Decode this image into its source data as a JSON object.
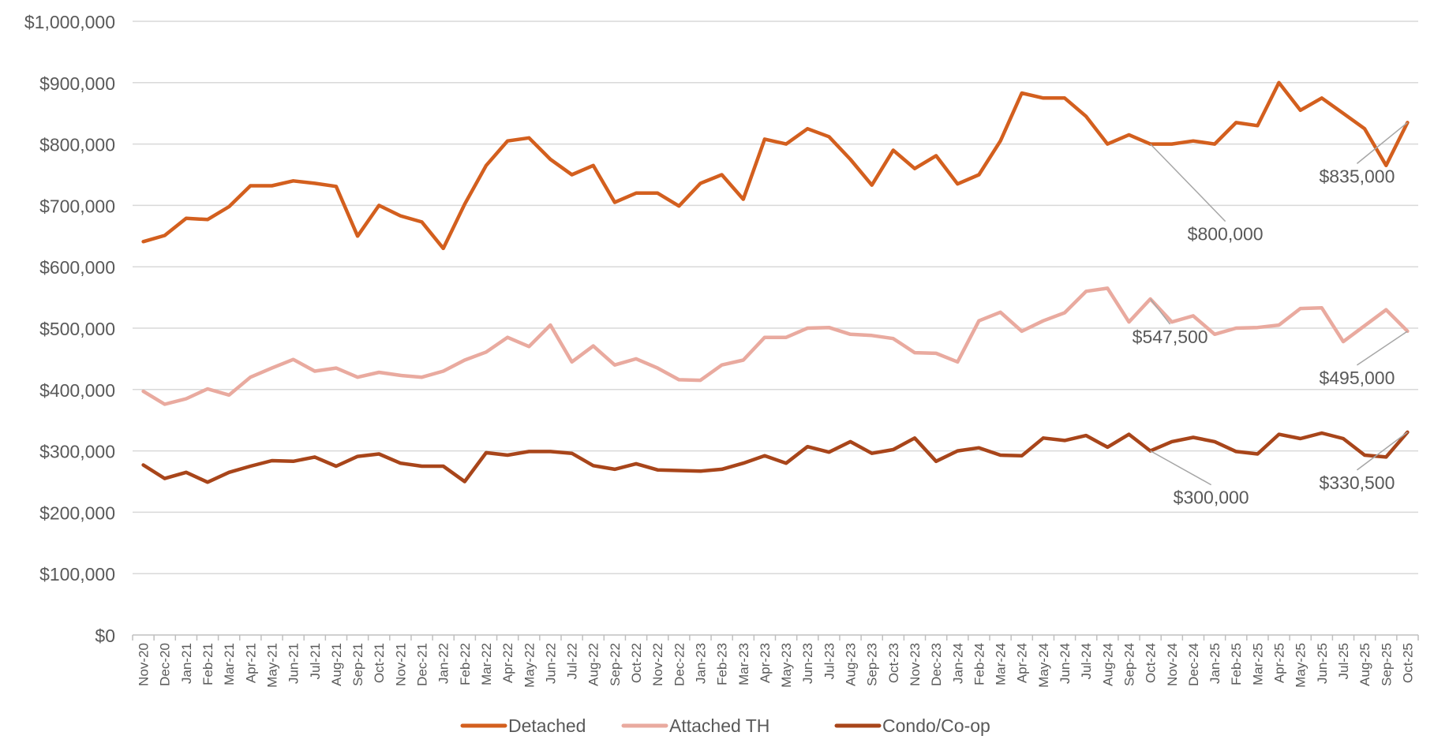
{
  "chart_data": {
    "type": "line",
    "title": "",
    "xlabel": "",
    "ylabel": "",
    "ylim": [
      0,
      1000000
    ],
    "yticks": [
      "$0",
      "$100,000",
      "$200,000",
      "$300,000",
      "$400,000",
      "$500,000",
      "$600,000",
      "$700,000",
      "$800,000",
      "$900,000",
      "$1,000,000"
    ],
    "ytick_values": [
      0,
      100000,
      200000,
      300000,
      400000,
      500000,
      600000,
      700000,
      800000,
      900000,
      1000000
    ],
    "grid": true,
    "legend_position": "bottom-center",
    "categories": [
      "Nov-20",
      "Dec-20",
      "Jan-21",
      "Feb-21",
      "Mar-21",
      "Apr-21",
      "May-21",
      "Jun-21",
      "Jul-21",
      "Aug-21",
      "Sep-21",
      "Oct-21",
      "Nov-21",
      "Dec-21",
      "Jan-22",
      "Feb-22",
      "Mar-22",
      "Apr-22",
      "May-22",
      "Jun-22",
      "Jul-22",
      "Aug-22",
      "Sep-22",
      "Oct-22",
      "Nov-22",
      "Dec-22",
      "Jan-23",
      "Feb-23",
      "Mar-23",
      "Apr-23",
      "May-23",
      "Jun-23",
      "Jul-23",
      "Aug-23",
      "Sep-23",
      "Oct-23",
      "Nov-23",
      "Dec-23",
      "Jan-24",
      "Feb-24",
      "Mar-24",
      "Apr-24",
      "May-24",
      "Jun-24",
      "Jul-24",
      "Aug-24",
      "Sep-24",
      "Oct-24",
      "Nov-24",
      "Dec-24",
      "Jan-25",
      "Feb-25",
      "Mar-25",
      "Apr-25",
      "May-25",
      "Jun-25",
      "Jul-25",
      "Aug-25",
      "Sep-25",
      "Oct-25"
    ],
    "series": [
      {
        "name": "Detached",
        "color": "#d35f1e",
        "values": [
          641000,
          651000,
          679000,
          677000,
          698000,
          732000,
          732000,
          740000,
          736000,
          731000,
          650000,
          700000,
          683000,
          673000,
          630000,
          702000,
          765000,
          805000,
          810000,
          775000,
          750000,
          765000,
          705000,
          720000,
          720000,
          699000,
          736000,
          750000,
          710000,
          808000,
          800000,
          825000,
          812000,
          775000,
          733000,
          790000,
          760000,
          781000,
          735000,
          750000,
          805000,
          883000,
          875000,
          875000,
          845000,
          800000,
          815000,
          800000,
          800000,
          805000,
          800000,
          835000,
          830000,
          900000,
          855000,
          875000,
          850000,
          825000,
          765000,
          835000
        ]
      },
      {
        "name": "Attached TH",
        "color": "#e9aa9f",
        "values": [
          397000,
          376000,
          385000,
          401000,
          391000,
          420000,
          435000,
          449000,
          430000,
          435000,
          420000,
          428000,
          423000,
          420000,
          430000,
          448000,
          461000,
          485000,
          470000,
          505000,
          445000,
          471000,
          440000,
          450000,
          435000,
          416000,
          415000,
          440000,
          448000,
          485000,
          485000,
          500000,
          501000,
          490000,
          488000,
          483000,
          460000,
          459000,
          445000,
          512000,
          526000,
          495000,
          512000,
          525000,
          560000,
          565000,
          510000,
          547500,
          510000,
          520000,
          490000,
          500000,
          501000,
          505000,
          532000,
          533000,
          478000,
          504000,
          530000,
          495000
        ]
      },
      {
        "name": "Condo/Co-op",
        "color": "#a8451a",
        "values": [
          277000,
          255000,
          265000,
          249000,
          265000,
          275000,
          284000,
          283000,
          290000,
          275000,
          291000,
          295000,
          280000,
          275000,
          275000,
          250000,
          297000,
          293000,
          299000,
          299000,
          296000,
          276000,
          270000,
          279000,
          269000,
          268000,
          267000,
          270000,
          280000,
          292000,
          280000,
          307000,
          298000,
          315000,
          296000,
          302000,
          321000,
          283000,
          300000,
          305000,
          293000,
          292000,
          321000,
          317000,
          325000,
          306000,
          327000,
          300000,
          315000,
          322000,
          315000,
          299000,
          295000,
          327000,
          320000,
          329000,
          320000,
          293000,
          290000,
          330500
        ]
      }
    ],
    "annotations": [
      {
        "series": "Detached",
        "category": "Oct-24",
        "value": 800000,
        "label": "$800,000"
      },
      {
        "series": "Detached",
        "category": "Oct-25",
        "value": 835000,
        "label": "$835,000"
      },
      {
        "series": "Attached TH",
        "category": "Oct-24",
        "value": 547500,
        "label": "$547,500"
      },
      {
        "series": "Attached TH",
        "category": "Oct-25",
        "value": 495000,
        "label": "$495,000"
      },
      {
        "series": "Condo/Co-op",
        "category": "Oct-24",
        "value": 300000,
        "label": "$300,000"
      },
      {
        "series": "Condo/Co-op",
        "category": "Oct-25",
        "value": 330500,
        "label": "$330,500"
      }
    ],
    "gridline_color": "#d9d9d9",
    "axis_color": "#bfbfbf",
    "text_color": "#595959",
    "leader_color": "#a6a6a6"
  }
}
